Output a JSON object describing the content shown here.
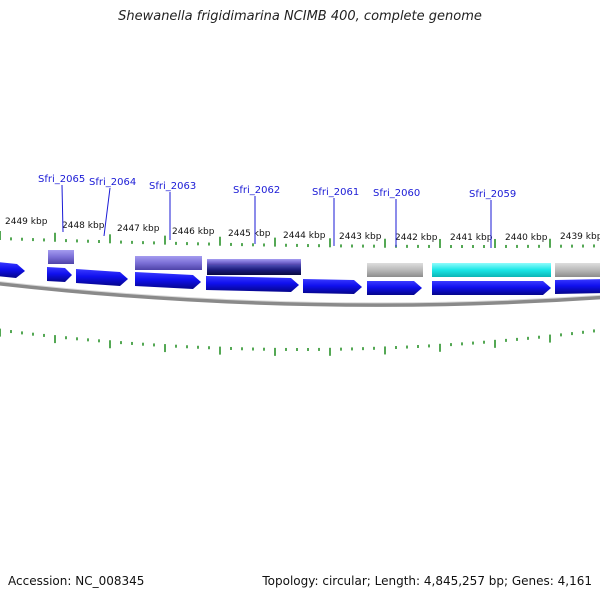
{
  "title": "Shewanella frigidimarina NCIMB 400, complete genome",
  "footer": {
    "accession": "Accession: NC_008345",
    "summary": "Topology: circular; Length: 4,845,257 bp; Genes: 4,161"
  },
  "ruler_labels": [
    "2449 kbp",
    "2448 kbp",
    "2447 kbp",
    "2446 kbp",
    "2445 kbp",
    "2444 kbp",
    "2443 kbp",
    "2442 kbp",
    "2441 kbp",
    "2440 kbp",
    "2439 kbp"
  ],
  "gene_labels": [
    "Sfri_2065",
    "Sfri_2064",
    "Sfri_2063",
    "Sfri_2062",
    "Sfri_2061",
    "Sfri_2060",
    "Sfri_2059"
  ],
  "colors": {
    "cds_blue": "#1010ee",
    "cog_purple": "#7b6fd6",
    "cog_navy": "#1a1a7a",
    "cog_gray": "#b9b9b9",
    "cog_cyan": "#19e6e6",
    "ticks": "#1a8a1a",
    "backbone": "#8a8a8a",
    "label_blue": "#1a1ad6"
  }
}
